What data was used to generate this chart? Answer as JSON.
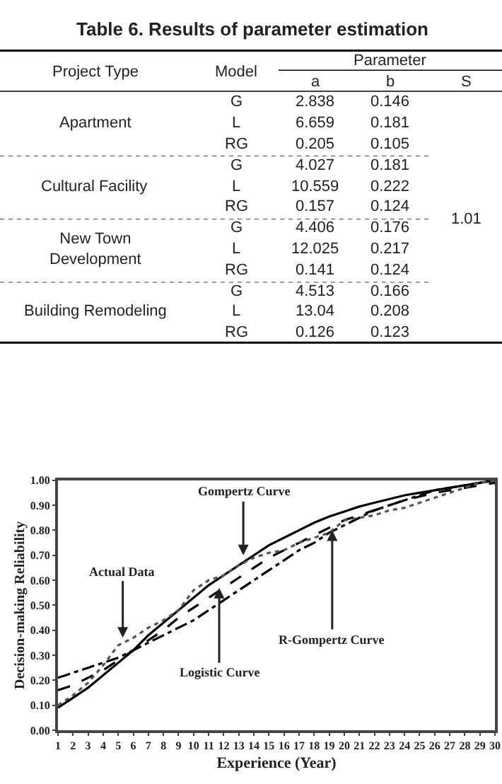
{
  "chart_data": [
    {
      "type": "other",
      "title": "Table 6. Results of parameter estimation",
      "annotations": [
        "Project Type",
        "Model",
        "Parameter",
        "a",
        "b",
        "S",
        "Apartment",
        "Cultural Facility",
        "New Town\nDevelopment",
        "Building Remodeling",
        "G",
        "2.838",
        "0.146",
        "L",
        "6.659",
        "0.181",
        "RG",
        "0.205",
        "0.105",
        "G",
        "4.027",
        "0.181",
        "L",
        "10.559",
        "0.222",
        "RG",
        "0.157",
        "0.124",
        "G",
        "4.406",
        "0.176",
        "L",
        "12.025",
        "0.217",
        "RG",
        "0.141",
        "0.124",
        "G",
        "4.513",
        "0.166",
        "L",
        "13.04",
        "0.208",
        "RG",
        "0.126",
        "0.123",
        "1.01"
      ]
    },
    {
      "type": "line",
      "xlabel": "Experience (Year)",
      "ylabel": "Decision-making Reliability",
      "x": [
        1,
        2,
        3,
        4,
        5,
        6,
        7,
        8,
        9,
        10,
        11,
        12,
        13,
        14,
        15,
        16,
        17,
        18,
        19,
        20,
        21,
        22,
        23,
        24,
        25,
        26,
        27,
        28,
        29,
        30
      ],
      "xlim": [
        1,
        30
      ],
      "xticks": [
        1,
        2,
        3,
        4,
        5,
        6,
        7,
        8,
        9,
        10,
        11,
        12,
        13,
        14,
        15,
        16,
        17,
        18,
        19,
        20,
        21,
        22,
        23,
        24,
        25,
        26,
        27,
        28,
        29,
        30
      ],
      "ylim": [
        0,
        1
      ],
      "yticks": [
        {
          "value": 0,
          "label": "0.00"
        },
        {
          "value": 0.1,
          "label": "0.10"
        },
        {
          "value": 0.2,
          "label": "0.20"
        },
        {
          "value": 0.3,
          "label": "0.30"
        },
        {
          "value": 0.4,
          "label": "0.40"
        },
        {
          "value": 0.5,
          "label": "0.50"
        },
        {
          "value": 0.6,
          "label": "0.60"
        },
        {
          "value": 0.7,
          "label": "0.70"
        },
        {
          "value": 0.8,
          "label": "0.80"
        },
        {
          "value": 0.9,
          "label": "0.90"
        },
        {
          "value": 1,
          "label": "1.00"
        }
      ],
      "marker": "none",
      "series": [
        {
          "color": "#000000",
          "line_style": "solid",
          "values": [
            0.09,
            0.13,
            0.17,
            0.22,
            0.27,
            0.32,
            0.38,
            0.43,
            0.48,
            0.53,
            0.58,
            0.62,
            0.66,
            0.7,
            0.74,
            0.77,
            0.8,
            0.83,
            0.855,
            0.875,
            0.895,
            0.91,
            0.925,
            0.94,
            0.95,
            0.96,
            0.97,
            0.98,
            0.99,
            1.0
          ]
        },
        {
          "color": "#000000",
          "line_style": "dashed",
          "values": [
            0.16,
            0.18,
            0.21,
            0.24,
            0.28,
            0.32,
            0.36,
            0.4,
            0.45,
            0.49,
            0.53,
            0.57,
            0.61,
            0.65,
            0.69,
            0.72,
            0.75,
            0.78,
            0.81,
            0.84,
            0.86,
            0.88,
            0.9,
            0.92,
            0.935,
            0.95,
            0.96,
            0.97,
            0.98,
            0.99
          ]
        },
        {
          "color": "#000000",
          "line_style": "dashdot",
          "values": [
            0.21,
            0.23,
            0.25,
            0.27,
            0.29,
            0.32,
            0.35,
            0.38,
            0.41,
            0.44,
            0.48,
            0.52,
            0.56,
            0.6,
            0.64,
            0.68,
            0.72,
            0.75,
            0.79,
            0.82,
            0.85,
            0.88,
            0.9,
            0.92,
            0.94,
            0.96,
            0.97,
            0.98,
            0.99,
            1.0
          ]
        },
        {
          "color": "#555555",
          "line_style": "dotted",
          "values": [
            0.1,
            0.14,
            0.19,
            0.26,
            0.34,
            0.37,
            0.41,
            0.44,
            0.48,
            0.56,
            0.6,
            0.62,
            0.66,
            0.69,
            0.71,
            0.72,
            0.75,
            0.77,
            0.79,
            0.84,
            0.85,
            0.86,
            0.88,
            0.89,
            0.91,
            0.93,
            0.95,
            0.97,
            0.99,
            1.0
          ]
        }
      ],
      "annotations": [
        {
          "text": "Gompertz Curve",
          "x": 13.3,
          "y": 0.7
        },
        {
          "text": "Actual Data",
          "x": 5.3,
          "y": 0.37
        },
        {
          "text": "Logistic Curve",
          "x": 11.7,
          "y": 0.57
        },
        {
          "text": "R-Gompertz Curve",
          "x": 19.2,
          "y": 0.8
        }
      ]
    }
  ]
}
